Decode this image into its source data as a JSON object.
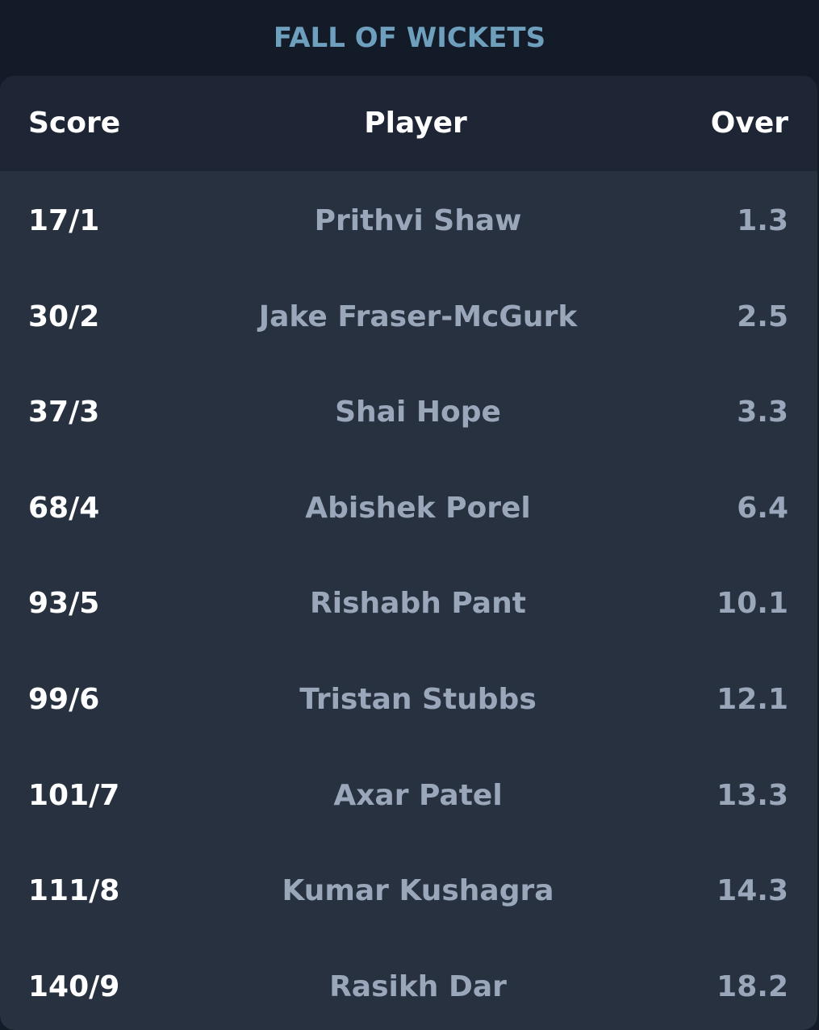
{
  "title": "FALL OF WICKETS",
  "columns": {
    "score": "Score",
    "player": "Player",
    "over": "Over"
  },
  "rows": [
    {
      "score": "17/1",
      "player": "Prithvi Shaw",
      "over": "1.3"
    },
    {
      "score": "30/2",
      "player": "Jake Fraser-McGurk",
      "over": "2.5"
    },
    {
      "score": "37/3",
      "player": "Shai Hope",
      "over": "3.3"
    },
    {
      "score": "68/4",
      "player": "Abishek Porel",
      "over": "6.4"
    },
    {
      "score": "93/5",
      "player": "Rishabh Pant",
      "over": "10.1"
    },
    {
      "score": "99/6",
      "player": "Tristan Stubbs",
      "over": "12.1"
    },
    {
      "score": "101/7",
      "player": "Axar Patel",
      "over": "13.3"
    },
    {
      "score": "111/8",
      "player": "Kumar Kushagra",
      "over": "14.3"
    },
    {
      "score": "140/9",
      "player": "Rasikh Dar",
      "over": "18.2"
    }
  ],
  "colors": {
    "background": "#131b29",
    "card": "#283140",
    "header": "#1e2635",
    "title": "#6e9fbd",
    "primary_text": "#ffffff",
    "secondary_text": "#9aa7ba"
  }
}
